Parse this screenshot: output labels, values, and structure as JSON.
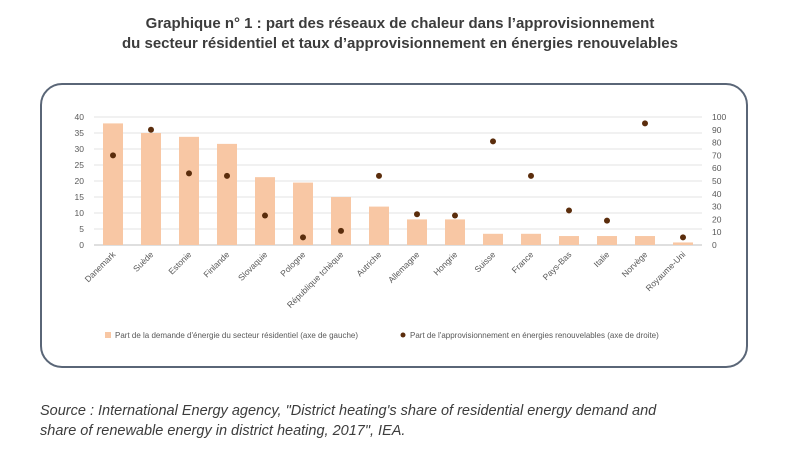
{
  "title_line1": "Graphique n° 1 : part des réseaux de chaleur dans l’approvisionnement",
  "title_line2": "du secteur résidentiel et taux d’approvisionnement en énergies renouvelables",
  "source_line1": "Source : International Energy agency, \"District heating's share of residential energy demand and",
  "source_line2": "share of renewable energy in district heating, 2017\", IEA.",
  "chart_data": {
    "type": "bar",
    "categories": [
      "Danemark",
      "Suède",
      "Estonie",
      "Finlande",
      "Slovaquie",
      "Pologne",
      "République tchèque",
      "Autriche",
      "Allemagne",
      "Hongrie",
      "Suisse",
      "France",
      "Pays-Bas",
      "Italie",
      "Norvège",
      "Royaume-Uni"
    ],
    "series": [
      {
        "name": "Part de la demande d'énergie du secteur résidentiel (axe de gauche)",
        "type": "bar",
        "axis": "left",
        "color": "#f8c7a4",
        "values": [
          38,
          35,
          33.8,
          31.6,
          21.2,
          19.5,
          15,
          12,
          8,
          8,
          3.5,
          3.5,
          2.8,
          2.8,
          2.8,
          0.8
        ]
      },
      {
        "name": "Part de l'approvisionnement en énergies renouvelables (axe de droite)",
        "type": "scatter",
        "axis": "right",
        "color": "#5b2d0c",
        "values": [
          70,
          90,
          56,
          54,
          23,
          6,
          11,
          54,
          24,
          23,
          81,
          54,
          27,
          19,
          95,
          6
        ]
      }
    ],
    "ylim_left": [
      0,
      40
    ],
    "yticks_left": [
      0,
      5,
      10,
      15,
      20,
      25,
      30,
      35,
      40
    ],
    "ylim_right": [
      0,
      100
    ],
    "yticks_right": [
      0,
      10,
      20,
      30,
      40,
      50,
      60,
      70,
      80,
      90,
      100
    ],
    "grid": true,
    "legend_position": "bottom"
  }
}
